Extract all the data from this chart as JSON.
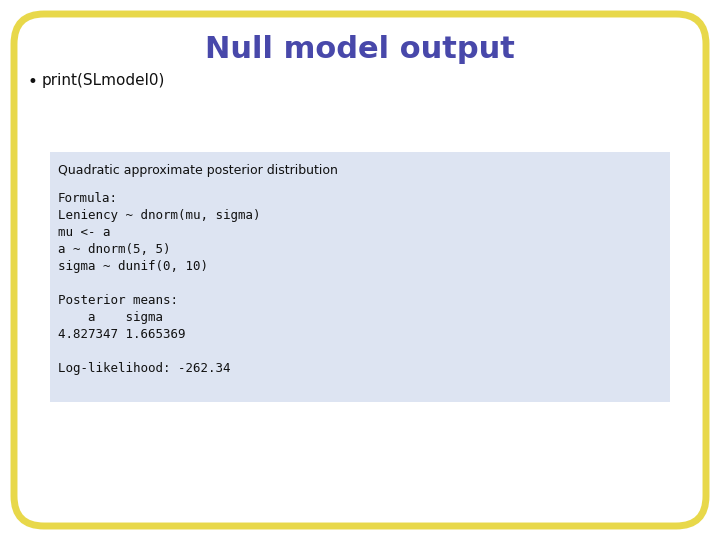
{
  "title": "Null model output",
  "title_color": "#4848aa",
  "title_fontsize": 22,
  "title_fontweight": "bold",
  "bullet_text": "print(SLmodel0)",
  "bullet_color": "#111111",
  "bullet_fontsize": 11,
  "background_color": "#ffffff",
  "outer_border_color": "#e8d84a",
  "outer_border_linewidth": 5,
  "code_box_color": "#dde4f2",
  "code_box_text_color": "#111111",
  "code_header_fontsize": 9,
  "code_body_fontsize": 9,
  "code_header": "Quadratic approximate posterior distribution",
  "code_lines": [
    "Formula:",
    "Leniency ~ dnorm(mu, sigma)",
    "mu <- a",
    "a ~ dnorm(5, 5)",
    "sigma ~ dunif(0, 10)",
    "",
    "Posterior means:",
    "    a    sigma",
    "4.827347 1.665369",
    "",
    "Log-likelihood: -262.34"
  ]
}
